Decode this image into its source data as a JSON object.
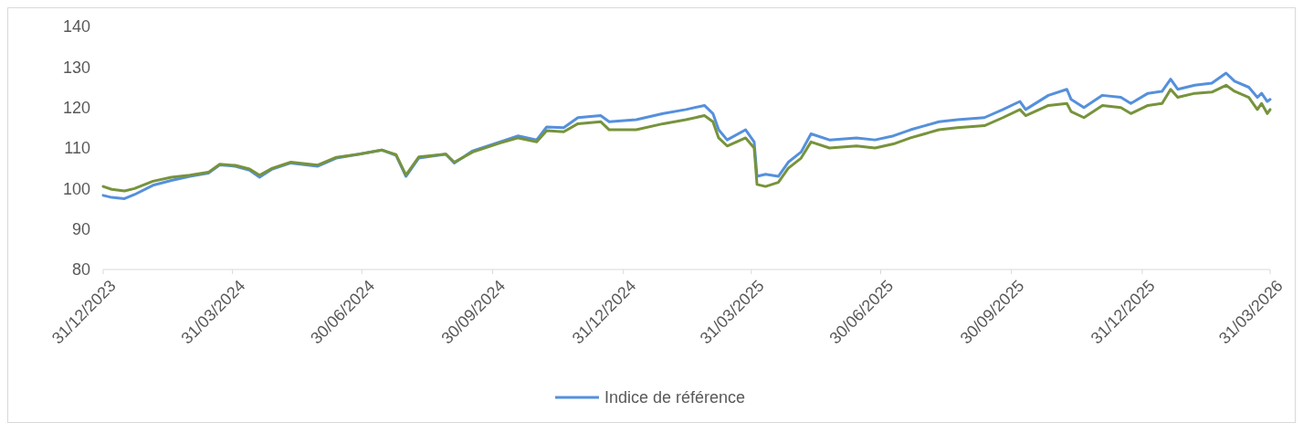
{
  "chart_data": {
    "type": "line",
    "x": [
      "2023-12-31",
      "2024-01-06",
      "2024-01-15",
      "2024-01-22",
      "2024-02-04",
      "2024-02-17",
      "2024-03-01",
      "2024-03-14",
      "2024-03-22",
      "2024-04-02",
      "2024-04-12",
      "2024-04-19",
      "2024-04-28",
      "2024-05-11",
      "2024-05-30",
      "2024-06-12",
      "2024-06-28",
      "2024-07-14",
      "2024-07-24",
      "2024-07-31",
      "2024-08-09",
      "2024-08-28",
      "2024-09-03",
      "2024-09-16",
      "2024-10-05",
      "2024-10-18",
      "2024-10-31",
      "2024-11-07",
      "2024-11-19",
      "2024-11-29",
      "2024-12-15",
      "2024-12-21",
      "2025-01-09",
      "2025-01-28",
      "2025-02-13",
      "2025-02-26",
      "2025-03-04",
      "2025-03-08",
      "2025-03-14",
      "2025-03-27",
      "2025-04-02",
      "2025-04-04",
      "2025-04-10",
      "2025-04-19",
      "2025-04-26",
      "2025-05-05",
      "2025-05-12",
      "2025-05-25",
      "2025-06-13",
      "2025-06-26",
      "2025-07-09",
      "2025-07-21",
      "2025-07-31",
      "2025-08-10",
      "2025-08-23",
      "2025-09-11",
      "2025-09-24",
      "2025-10-06",
      "2025-10-10",
      "2025-10-26",
      "2025-11-08",
      "2025-11-11",
      "2025-11-20",
      "2025-12-03",
      "2025-12-16",
      "2025-12-23",
      "2026-01-04",
      "2026-01-14",
      "2026-01-20",
      "2026-01-25",
      "2026-02-06",
      "2026-02-18",
      "2026-02-28",
      "2026-03-06",
      "2026-03-16",
      "2026-03-22",
      "2026-03-25",
      "2026-03-29",
      "2026-03-31"
    ],
    "series": [
      {
        "name": "Indice de référence",
        "color": "#5590dc",
        "values": [
          98.3,
          97.8,
          97.5,
          98.5,
          100.8,
          102,
          103,
          103.8,
          105.8,
          105.5,
          104.5,
          102.8,
          104.8,
          106.3,
          105.5,
          107.5,
          108.5,
          109.5,
          108.2,
          103,
          107.5,
          108.5,
          106.3,
          109.3,
          111.5,
          113,
          112,
          115.2,
          115,
          117.5,
          118,
          116.5,
          117,
          118.5,
          119.5,
          120.5,
          118.5,
          114.5,
          112,
          114.5,
          111.5,
          103,
          103.5,
          103,
          106.5,
          109,
          113.5,
          112,
          112.5,
          112,
          113,
          114.5,
          115.5,
          116.5,
          117,
          117.5,
          119.5,
          121.5,
          119.5,
          123,
          124.5,
          122,
          120,
          123,
          122.5,
          121,
          123.5,
          124,
          127,
          124.5,
          125.5,
          126,
          128.5,
          126.5,
          125,
          122.5,
          123.5,
          121.5,
          122
        ]
      },
      {
        "color": "#77933c",
        "values": [
          100.5,
          99.8,
          99.4,
          100,
          101.8,
          102.8,
          103.3,
          104,
          106,
          105.7,
          104.8,
          103.3,
          105,
          106.5,
          105.8,
          107.7,
          108.5,
          109.5,
          108.4,
          103.3,
          107.8,
          108.5,
          106.5,
          109,
          111.2,
          112.5,
          111.5,
          114.3,
          114,
          116,
          116.5,
          114.5,
          114.5,
          116,
          117,
          118,
          116.5,
          112.5,
          110.5,
          112.5,
          110,
          101,
          100.5,
          101.5,
          105,
          107.5,
          111.5,
          110,
          110.5,
          110,
          111,
          112.5,
          113.5,
          114.5,
          115,
          115.5,
          117.5,
          119.5,
          118,
          120.5,
          121,
          119,
          117.5,
          120.5,
          120,
          118.5,
          120.5,
          121,
          124.5,
          122.5,
          123.5,
          123.8,
          125.5,
          124,
          122.5,
          119.5,
          121,
          118.5,
          119.5
        ]
      }
    ],
    "xlim": [
      "2023-12-31",
      "2026-03-31"
    ],
    "xticks": [
      {
        "value": "2023-12-31",
        "label": "31/12/2023"
      },
      {
        "value": "2024-03-31",
        "label": "31/03/2024"
      },
      {
        "value": "2024-06-30",
        "label": "30/06/2024"
      },
      {
        "value": "2024-09-30",
        "label": "30/09/2024"
      },
      {
        "value": "2024-12-31",
        "label": "31/12/2024"
      },
      {
        "value": "2025-03-31",
        "label": "31/03/2025"
      },
      {
        "value": "2025-06-30",
        "label": "30/06/2025"
      },
      {
        "value": "2025-09-30",
        "label": "30/09/2025"
      },
      {
        "value": "2025-12-31",
        "label": "31/12/2025"
      },
      {
        "value": "2026-03-31",
        "label": "31/03/2026"
      }
    ],
    "ylim": [
      80,
      140
    ],
    "yticks": [
      80,
      90,
      100,
      110,
      120,
      130,
      140
    ],
    "legend": "bottom",
    "grid": false,
    "marker": "none",
    "line_style": "solid"
  }
}
